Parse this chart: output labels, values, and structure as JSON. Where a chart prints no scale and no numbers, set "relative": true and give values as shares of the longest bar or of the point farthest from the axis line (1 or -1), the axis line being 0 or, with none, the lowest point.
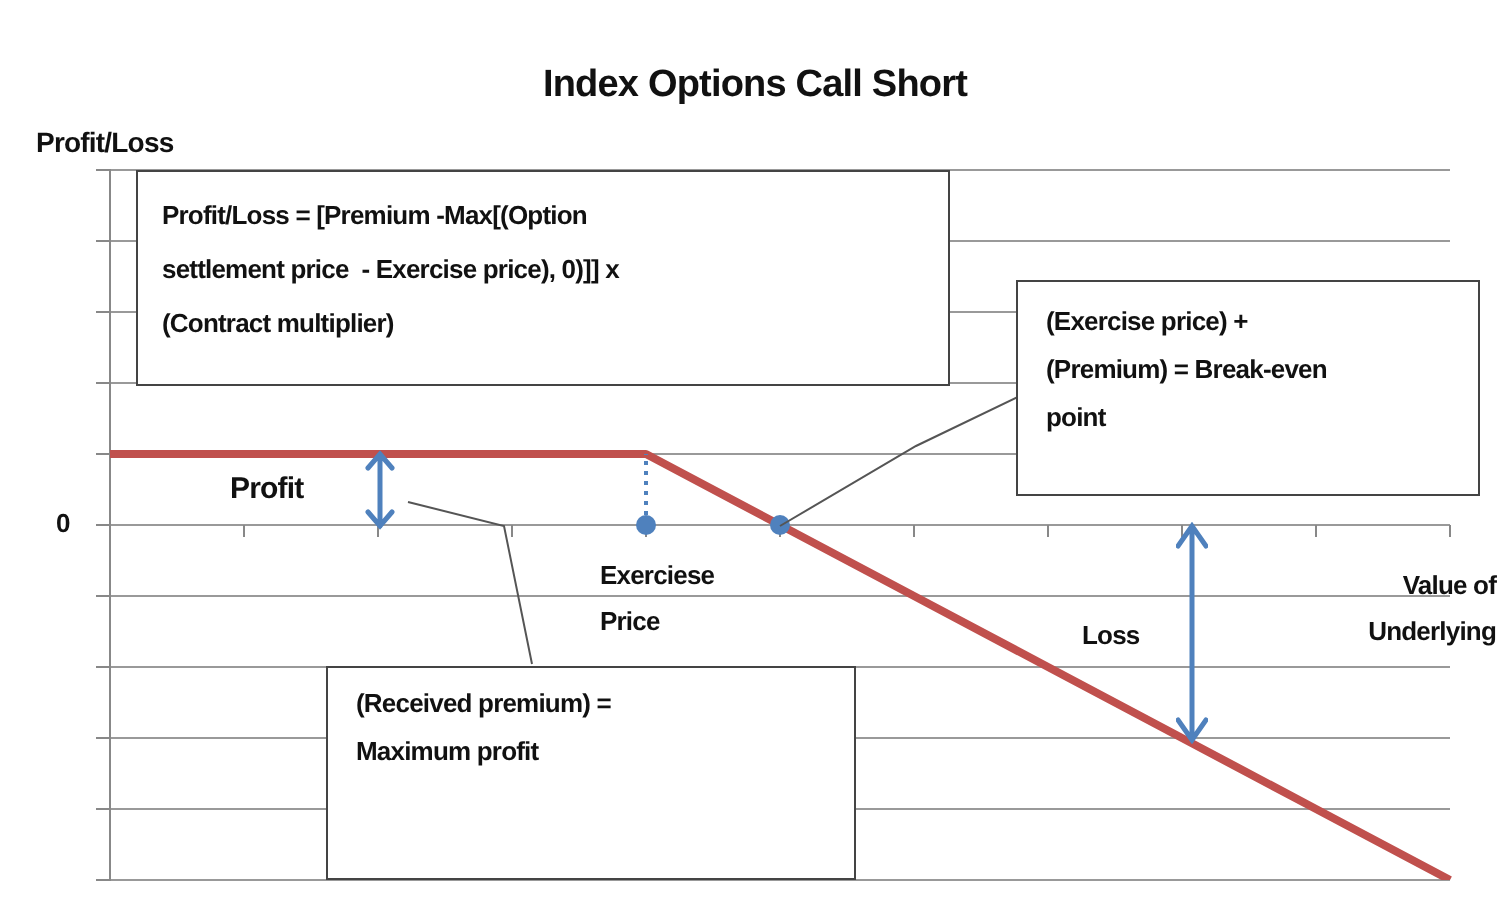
{
  "chart_data": {
    "type": "line",
    "title": "Index Options Call Short",
    "xlabel": "Value of Underlying",
    "relative": true,
    "grid": "y",
    "categories": [
      null,
      null,
      null,
      null,
      null,
      null,
      null,
      null,
      null,
      null,
      null
    ],
    "series": [
      {
        "color": "#c0504d",
        "values": [
          0.2,
          0.2,
          0.2,
          0.2,
          0.2,
          0,
          -0.2,
          -0.4,
          -0.6,
          -0.8,
          -1
        ]
      }
    ],
    "annotations": [
      "Profit/Loss = [Premium -Max[(Option settlement price  - Exercise price), 0)]] x (Contract multiplier)",
      "(Exercise price) + (Premium) = Break-even point",
      "(Received premium) = Maximum profit",
      "Exerciese Price",
      "Profit",
      "Loss",
      "0",
      "Profit/Loss"
    ]
  }
}
